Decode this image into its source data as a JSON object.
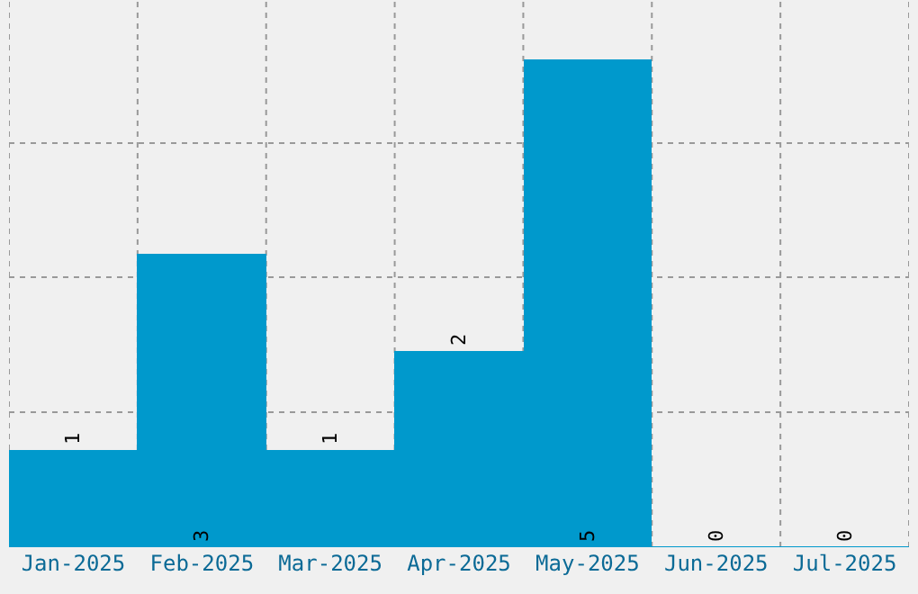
{
  "chart_data": {
    "type": "bar",
    "categories": [
      "Jan-2025",
      "Feb-2025",
      "Mar-2025",
      "Apr-2025",
      "May-2025",
      "Jun-2025",
      "Jul-2025"
    ],
    "values": [
      1,
      3,
      1,
      2,
      5,
      0,
      0
    ],
    "color": "#0099cc",
    "data_labels": true,
    "ylim": [
      0,
      5.6
    ],
    "yticks": [
      {
        "value": 1.38,
        "label": null
      },
      {
        "value": 2.76,
        "label": null
      },
      {
        "value": 4.14,
        "label": null
      }
    ],
    "tick_labels": "x",
    "grid": true
  }
}
